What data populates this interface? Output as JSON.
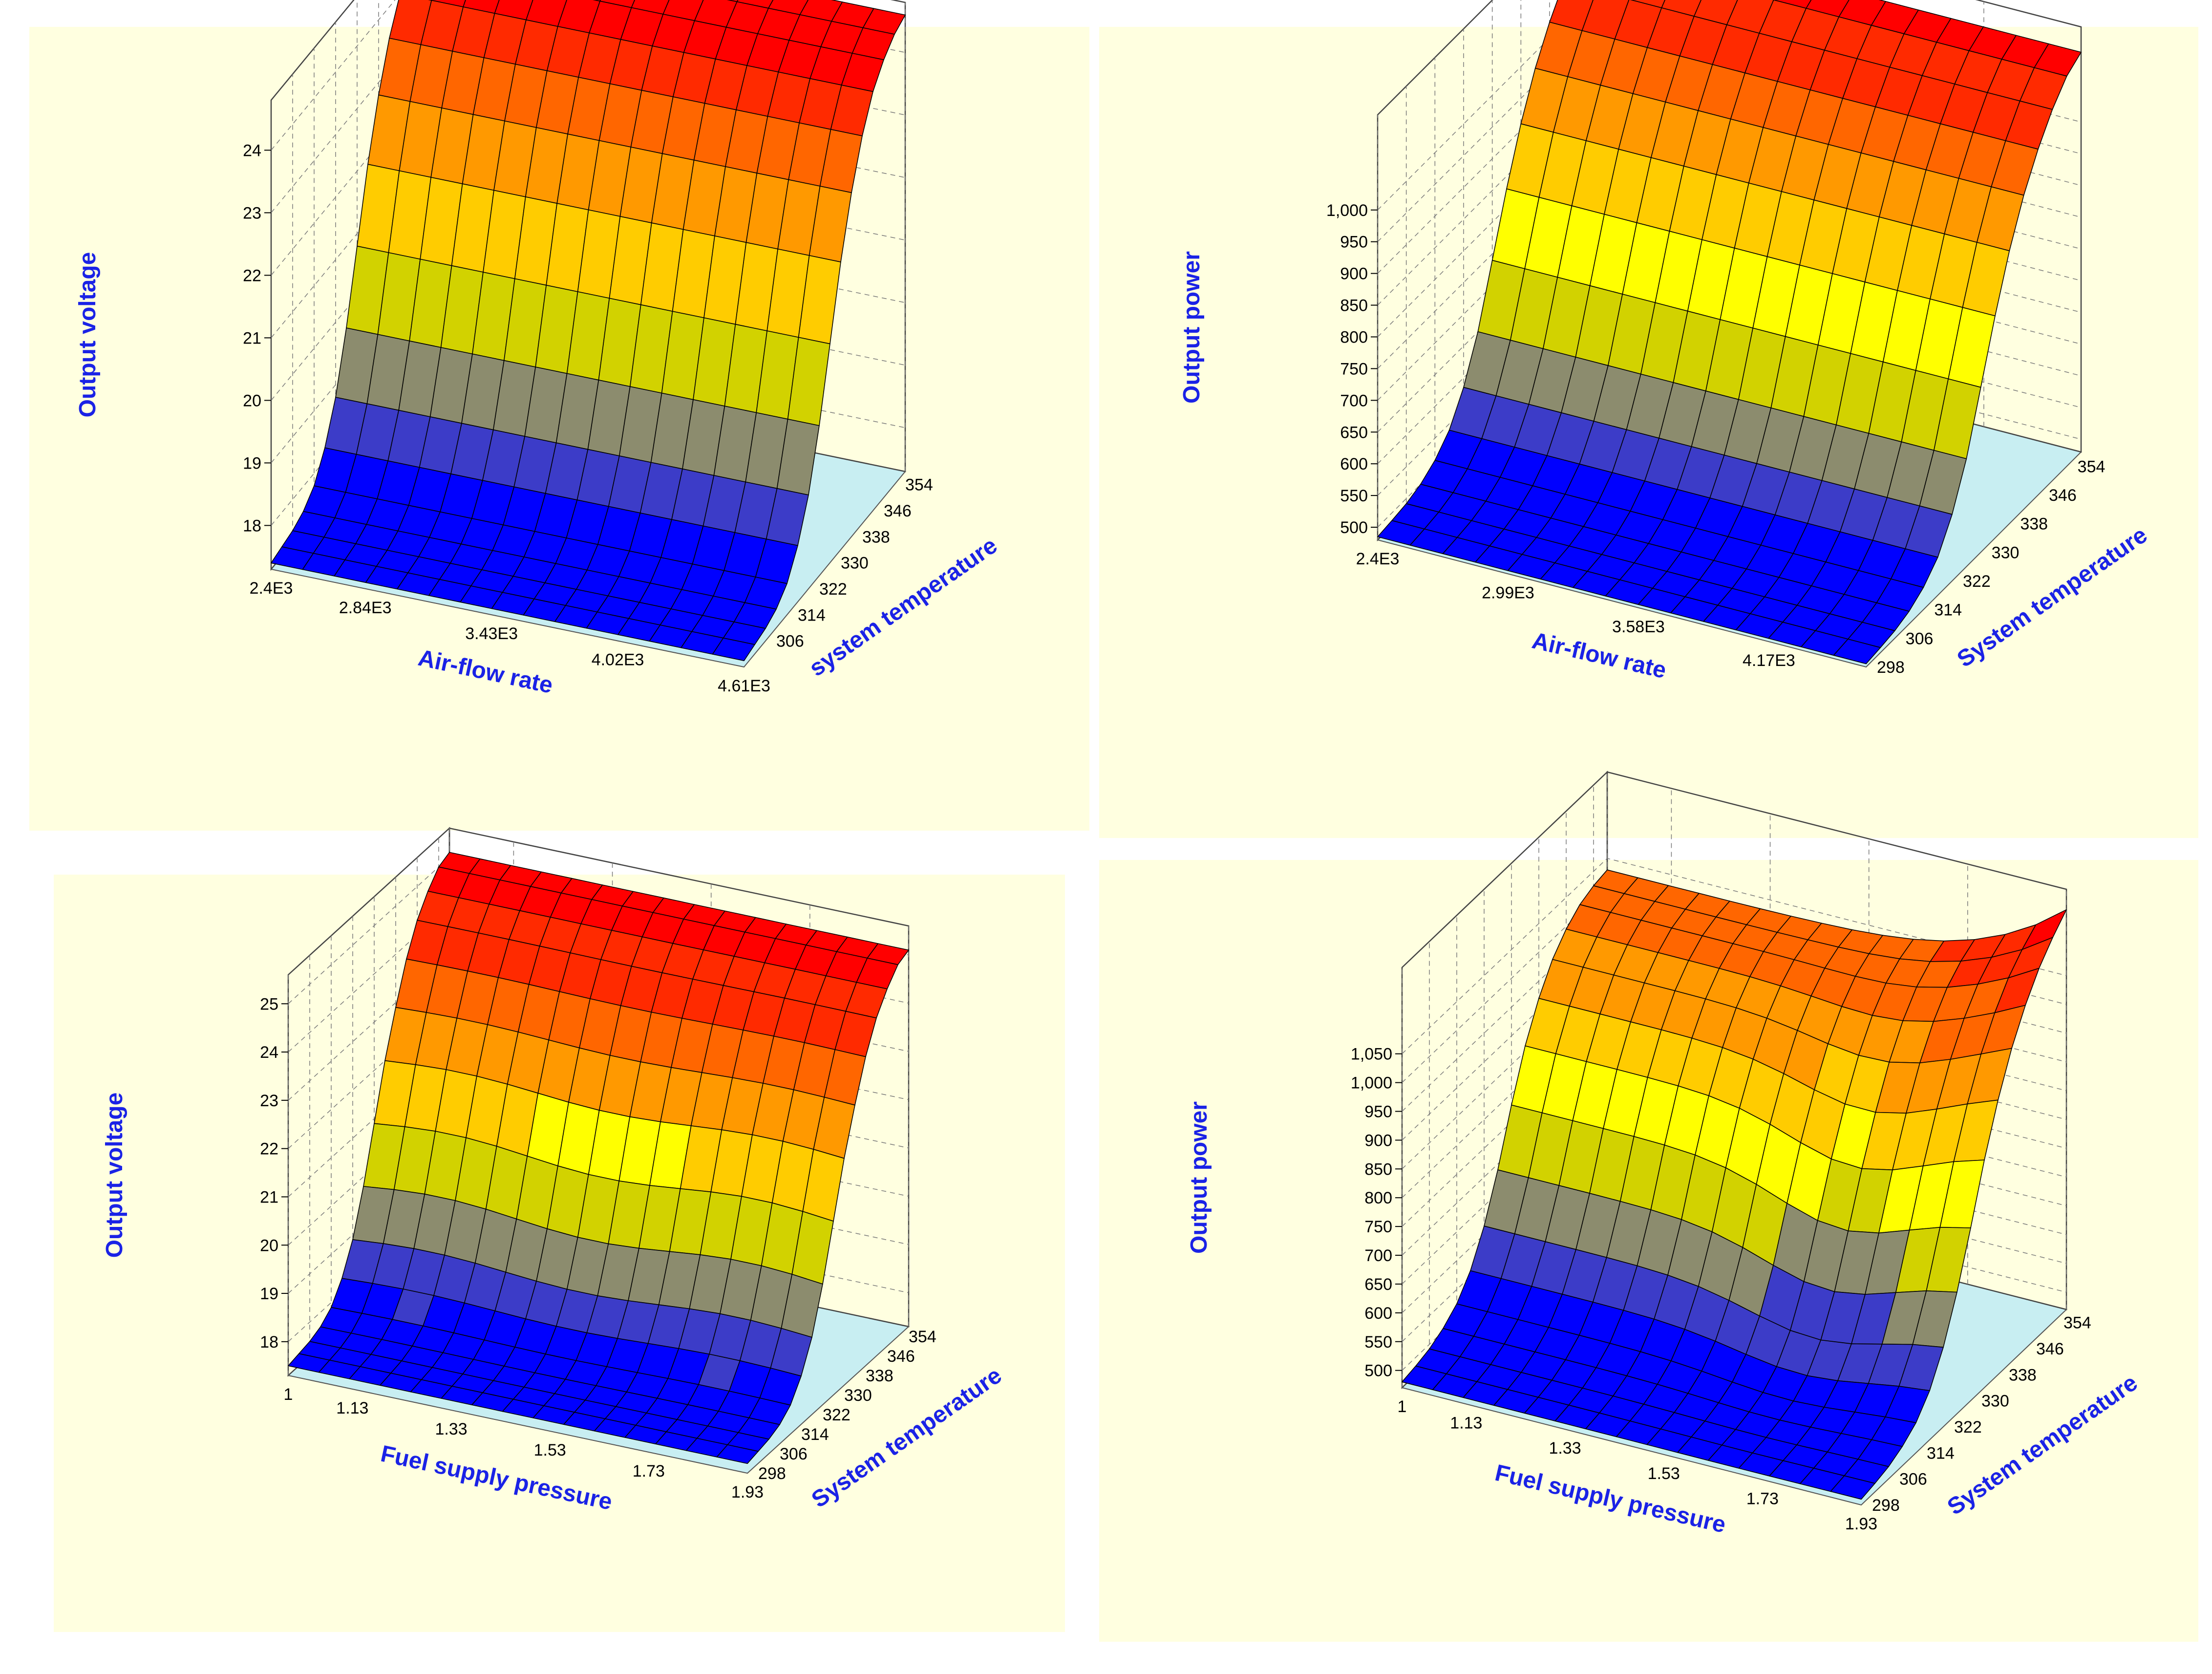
{
  "colors": {
    "panel_bg": "#ffffe0",
    "floor": "#c8eef2",
    "label": "#1a22e6",
    "grid": "#7a7a7a",
    "palette": [
      "#0000ff",
      "#3c3cc8",
      "#8c8c6e",
      "#d2d200",
      "#ffff00",
      "#ffcc00",
      "#ff9900",
      "#ff6600",
      "#ff2a00",
      "#ff0000"
    ]
  },
  "chart_data": [
    {
      "id": "p1",
      "type": "surface3d",
      "xlabel": "Air-flow rate",
      "ylabel": "system temperature",
      "zlabel": "Output voltage",
      "x_ticks": [
        "2.4E3",
        "2.84E3",
        "3.43E3",
        "4.02E3",
        "4.61E3"
      ],
      "x_range": [
        2400,
        4610
      ],
      "y_ticks": [
        "306",
        "314",
        "322",
        "330",
        "338",
        "346",
        "354"
      ],
      "y_range": [
        298,
        358
      ],
      "z_ticks": [
        "18",
        "19",
        "20",
        "21",
        "22",
        "23",
        "24"
      ],
      "z_range": [
        17.3,
        24.8
      ],
      "x_values": [
        2400,
        2547,
        2695,
        2842,
        2989,
        3137,
        3284,
        3431,
        3579,
        3726,
        3874,
        4021,
        4168,
        4316,
        4463,
        4610
      ],
      "y_values": [
        298,
        302,
        306,
        310,
        314,
        318,
        322,
        326,
        330,
        334,
        338,
        342,
        346,
        350,
        354,
        358
      ],
      "z_by_y": [
        17.4,
        17.45,
        17.5,
        17.6,
        17.8,
        18.2,
        18.8,
        19.7,
        20.8,
        21.9,
        22.8,
        23.5,
        24.0,
        24.3,
        24.5,
        24.6
      ]
    },
    {
      "id": "p2",
      "type": "surface3d",
      "xlabel": "Air-flow rate",
      "ylabel": "System temperature",
      "zlabel": "Output power",
      "x_ticks": [
        "2.4E3",
        "2.99E3",
        "3.58E3",
        "4.17E3"
      ],
      "x_range": [
        2400,
        4610
      ],
      "y_ticks": [
        "298",
        "306",
        "314",
        "322",
        "330",
        "338",
        "346",
        "354"
      ],
      "y_range": [
        298,
        358
      ],
      "z_ticks": [
        "500",
        "550",
        "600",
        "650",
        "700",
        "750",
        "800",
        "850",
        "900",
        "950",
        "1,000"
      ],
      "z_range": [
        480,
        1150
      ],
      "x_values": [
        2400,
        2547,
        2695,
        2842,
        2989,
        3137,
        3284,
        3431,
        3579,
        3726,
        3874,
        4021,
        4168,
        4316,
        4463,
        4610
      ],
      "y_values": [
        298,
        302,
        306,
        310,
        314,
        318,
        322,
        326,
        330,
        334,
        338,
        342,
        346,
        350,
        354,
        358
      ],
      "z_by_y": [
        485,
        488,
        492,
        500,
        515,
        540,
        585,
        650,
        740,
        830,
        910,
        975,
        1025,
        1065,
        1095,
        1110
      ]
    },
    {
      "id": "p3",
      "type": "surface3d",
      "xlabel": "Fuel supply pressure",
      "ylabel": "System temperature",
      "zlabel": "Output voltage",
      "x_ticks": [
        "1",
        "1.13",
        "1.33",
        "1.53",
        "1.73",
        "1.93"
      ],
      "x_range": [
        1,
        1.93
      ],
      "y_ticks": [
        "298",
        "306",
        "314",
        "322",
        "330",
        "338",
        "346",
        "354"
      ],
      "y_range": [
        298,
        358
      ],
      "z_ticks": [
        "18",
        "19",
        "20",
        "21",
        "22",
        "23",
        "24",
        "25"
      ],
      "z_range": [
        17.3,
        25.6
      ],
      "x_values": [
        1,
        1.062,
        1.124,
        1.186,
        1.248,
        1.31,
        1.372,
        1.434,
        1.496,
        1.558,
        1.62,
        1.682,
        1.744,
        1.806,
        1.868,
        1.93
      ],
      "y_values": [
        298,
        302,
        306,
        310,
        314,
        318,
        322,
        326,
        330,
        334,
        338,
        342,
        346,
        350,
        354,
        358
      ],
      "z_by_y": [
        17.5,
        17.55,
        17.6,
        17.7,
        17.9,
        18.3,
        18.9,
        19.8,
        20.9,
        22.0,
        22.9,
        23.7,
        24.3,
        24.7,
        25.0,
        25.1
      ],
      "x_ripple": 0.12
    },
    {
      "id": "p4",
      "type": "surface3d",
      "xlabel": "Fuel supply pressure",
      "ylabel": "System temperature",
      "zlabel": "Output power",
      "x_ticks": [
        "1",
        "1.13",
        "1.33",
        "1.53",
        "1.73",
        "1.93"
      ],
      "x_range": [
        1,
        1.93
      ],
      "y_ticks": [
        "298",
        "306",
        "314",
        "322",
        "330",
        "338",
        "346",
        "354"
      ],
      "y_range": [
        298,
        358
      ],
      "z_ticks": [
        "500",
        "550",
        "600",
        "650",
        "700",
        "750",
        "800",
        "850",
        "900",
        "950",
        "1,000",
        "1,050"
      ],
      "z_range": [
        470,
        1200
      ],
      "x_values": [
        1,
        1.062,
        1.124,
        1.186,
        1.248,
        1.31,
        1.372,
        1.434,
        1.496,
        1.558,
        1.62,
        1.682,
        1.744,
        1.806,
        1.868,
        1.93
      ],
      "y_values": [
        298,
        302,
        306,
        310,
        314,
        318,
        322,
        326,
        330,
        334,
        338,
        342,
        346,
        350,
        354,
        358
      ],
      "z_by_y": [
        480,
        485,
        492,
        505,
        525,
        560,
        615,
        690,
        780,
        860,
        920,
        965,
        995,
        1015,
        1025,
        1030
      ],
      "dip": 70,
      "edge_boost": 150
    }
  ]
}
